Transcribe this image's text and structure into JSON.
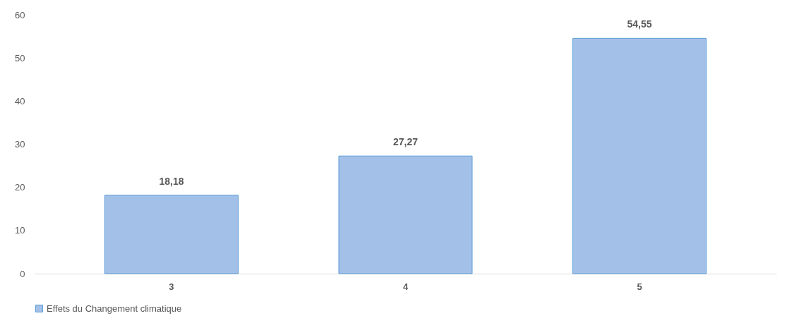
{
  "chart_data": {
    "type": "bar",
    "categories": [
      "3",
      "4",
      "5"
    ],
    "series": [
      {
        "name": "Effets du Changement climatique",
        "color": "#a3c1e8",
        "values": [
          18.18,
          27.27,
          54.55
        ]
      }
    ],
    "value_labels": [
      "18,18",
      "27,27",
      "54,55"
    ],
    "ylim": [
      0,
      60
    ],
    "yticks": [
      0,
      10,
      20,
      30,
      40,
      50,
      60
    ],
    "grid": false,
    "legend": "bottom"
  }
}
